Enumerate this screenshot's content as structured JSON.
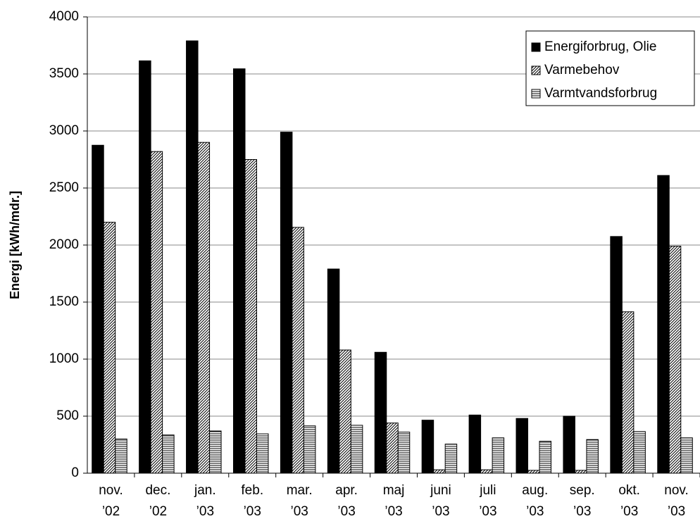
{
  "chart_data": {
    "type": "bar",
    "y_label": "Energi  [kWh/mdr.]",
    "categories": [
      "nov.\n’02",
      "dec.\n’02",
      "jan.\n’03",
      "feb.\n’03",
      "mar.\n’03",
      "apr.\n’03",
      "maj\n’03",
      "juni\n’03",
      "juli\n’03",
      "aug.\n’03",
      "sep.\n’03",
      "okt.\n’03",
      "nov.\n’03"
    ],
    "series": [
      {
        "name": "Energiforbrug, Olie",
        "color": "#000000",
        "fill": "solid",
        "values": [
          2875,
          3615,
          3790,
          3545,
          2990,
          1790,
          1060,
          465,
          510,
          480,
          500,
          2075,
          2610
        ]
      },
      {
        "name": "Varmebehov",
        "color": "#000000",
        "fill": "diagonal",
        "values": [
          2200,
          2820,
          2900,
          2750,
          2155,
          1080,
          440,
          30,
          30,
          25,
          25,
          1415,
          1990
        ]
      },
      {
        "name": "Varmtvandsforbrug",
        "color": "#000000",
        "fill": "horizontal",
        "values": [
          300,
          335,
          370,
          345,
          415,
          420,
          360,
          255,
          310,
          280,
          295,
          365,
          310
        ]
      }
    ],
    "ylim": [
      0,
      4000
    ],
    "yticks": [
      0,
      500,
      1000,
      1500,
      2000,
      2500,
      3000,
      3500,
      4000
    ],
    "grid": true,
    "legend": "top-right"
  }
}
